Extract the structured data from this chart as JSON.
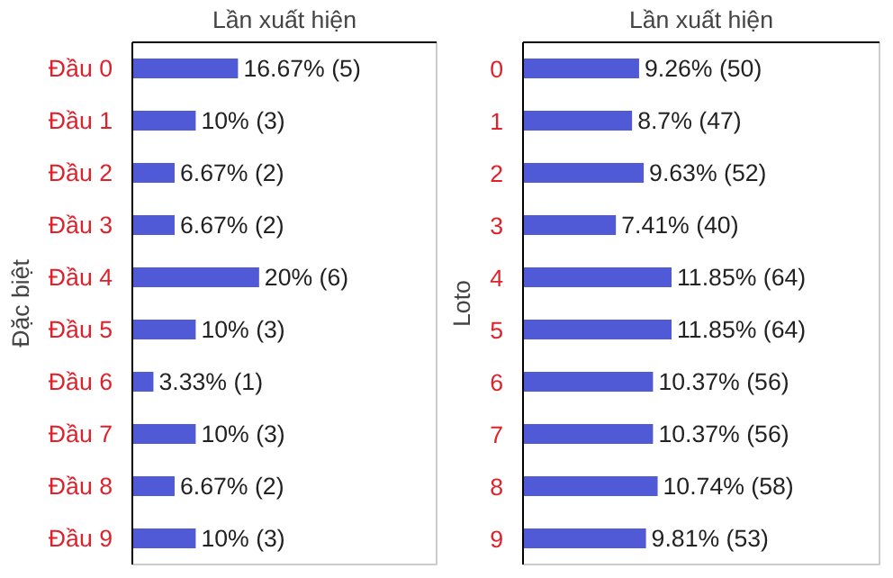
{
  "chart_data": [
    {
      "type": "bar",
      "orientation": "horizontal",
      "ylabel": "Đặc biệt",
      "xlabel": "Lần xuất hiện",
      "categories": [
        "Đầu 0",
        "Đầu 1",
        "Đầu 2",
        "Đầu 3",
        "Đầu 4",
        "Đầu 5",
        "Đầu 6",
        "Đầu 7",
        "Đầu 8",
        "Đầu 9"
      ],
      "values": [
        16.67,
        10,
        6.67,
        6.67,
        20,
        10,
        3.33,
        10,
        6.67,
        10
      ],
      "value_labels": [
        "16.67% (5)",
        "10% (3)",
        "6.67% (2)",
        "6.67% (2)",
        "20% (6)",
        "10% (3)",
        "3.33% (1)",
        "10% (3)",
        "6.67% (2)",
        "10% (3)"
      ],
      "color": "#5059d6",
      "grid": false
    },
    {
      "type": "bar",
      "orientation": "horizontal",
      "ylabel": "Loto",
      "xlabel": "Lần xuất hiện",
      "categories": [
        "0",
        "1",
        "2",
        "3",
        "4",
        "5",
        "6",
        "7",
        "8",
        "9"
      ],
      "values": [
        9.26,
        8.7,
        9.63,
        7.41,
        11.85,
        11.85,
        10.37,
        10.37,
        10.74,
        9.81
      ],
      "value_labels": [
        "9.26% (50)",
        "8.7% (47)",
        "9.63% (52)",
        "7.41% (40)",
        "11.85% (64)",
        "11.85% (64)",
        "10.37% (56)",
        "10.37% (56)",
        "10.74% (58)",
        "9.81% (53)"
      ],
      "color": "#5059d6",
      "grid": false
    }
  ]
}
